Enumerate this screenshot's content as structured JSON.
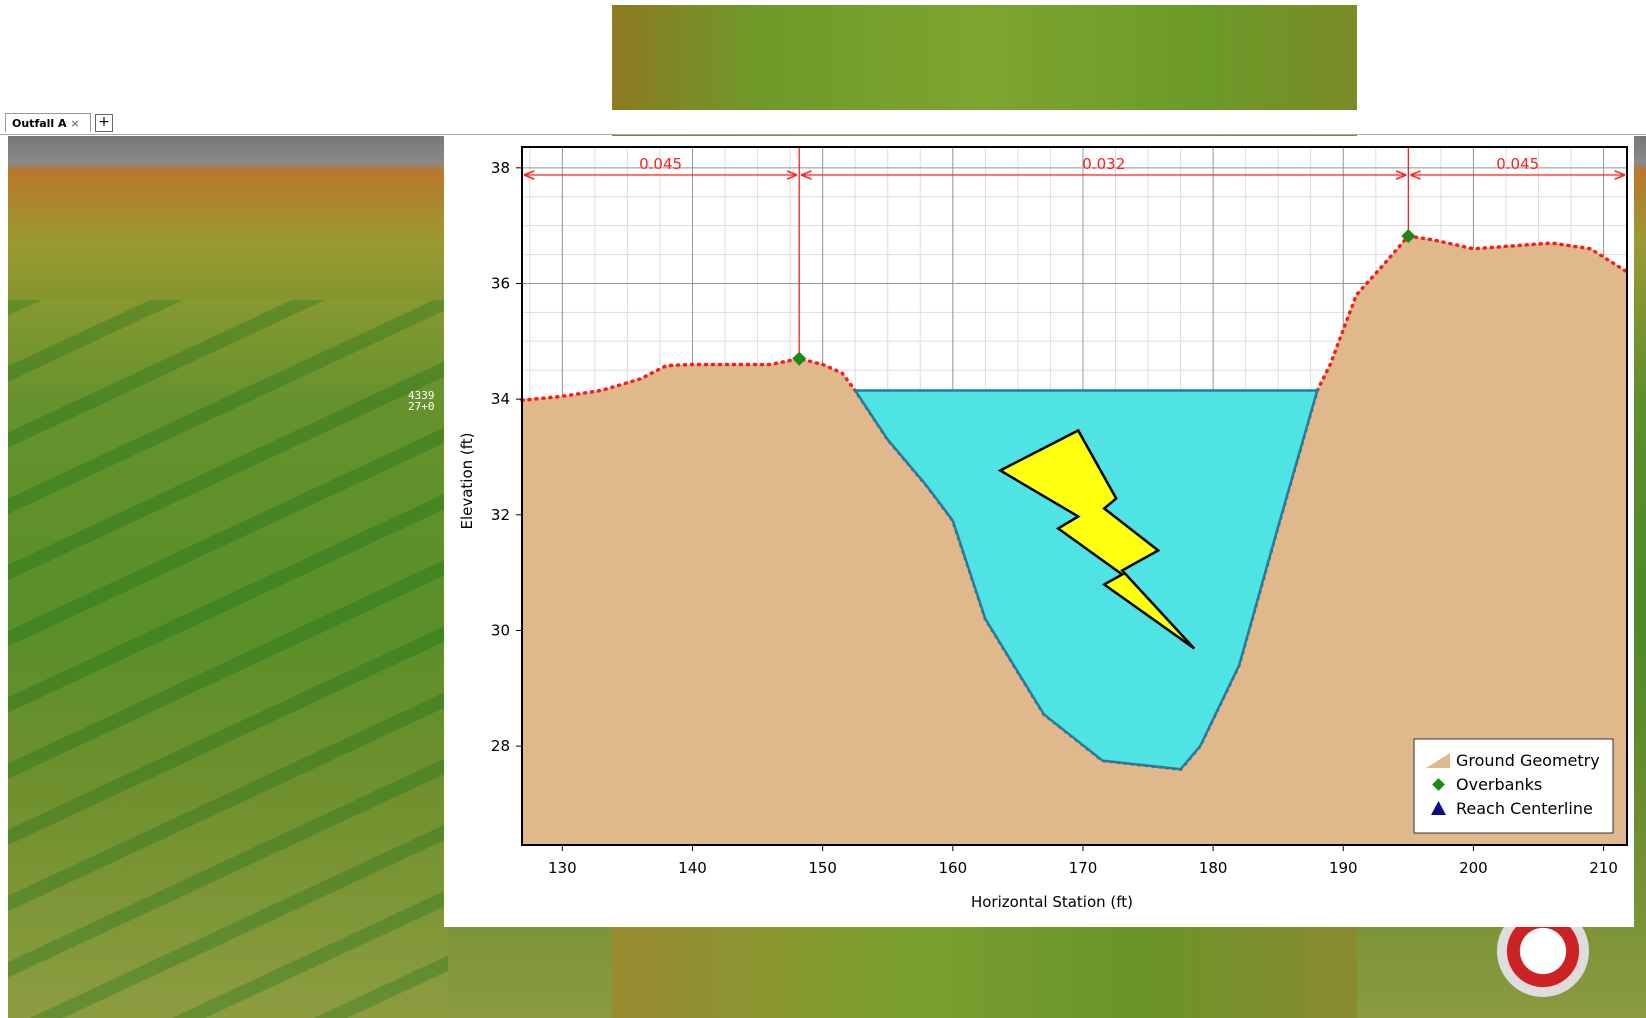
{
  "tab": {
    "title": "Outfall A"
  },
  "terrain_labels": [
    "4339",
    "27+0"
  ],
  "chart_data": {
    "type": "cross-section",
    "x_label": "Horizontal Station (ft)",
    "y_label": "Elevation (ft)",
    "xlim": [
      126.9,
      211.8
    ],
    "ylim": [
      26.29,
      38.36
    ],
    "xticks": [
      130,
      140,
      150,
      160,
      170,
      180,
      190,
      200,
      210
    ],
    "yticks": [
      28,
      30,
      32,
      34,
      36,
      38
    ],
    "grid": true,
    "legend": "lower right",
    "ground": {
      "name": "Ground Geometry",
      "color": "#dfb98c",
      "x": [
        126.9,
        130,
        133,
        136,
        138,
        140,
        146,
        148.2,
        150,
        151.5,
        152.5,
        155,
        158,
        160,
        162.5,
        167,
        171.5,
        177.5,
        179,
        182,
        185,
        188,
        189,
        190,
        191,
        193,
        195,
        197,
        200,
        203,
        206,
        209,
        211.8
      ],
      "values": [
        33.98,
        34.05,
        34.15,
        34.35,
        34.58,
        34.6,
        34.6,
        34.7,
        34.6,
        34.45,
        34.15,
        33.3,
        32.5,
        31.9,
        30.2,
        28.55,
        27.75,
        27.6,
        28.0,
        29.4,
        31.8,
        34.15,
        34.6,
        35.2,
        35.8,
        36.3,
        36.82,
        36.75,
        36.6,
        36.65,
        36.7,
        36.6,
        36.2
      ]
    },
    "overbanks": {
      "name": "Overbanks",
      "color": "#1a8a1a",
      "x": [
        148.2,
        195
      ],
      "values": [
        34.7,
        36.82
      ]
    },
    "reach_centerline": {
      "name": "Reach Centerline",
      "color": "#0a0a8a"
    },
    "water_surface_elevation": 34.15,
    "water_color": "#50e3e3",
    "mannings_n": [
      0.045,
      0.032,
      0.045
    ],
    "mannings_color": "#ff2020"
  }
}
